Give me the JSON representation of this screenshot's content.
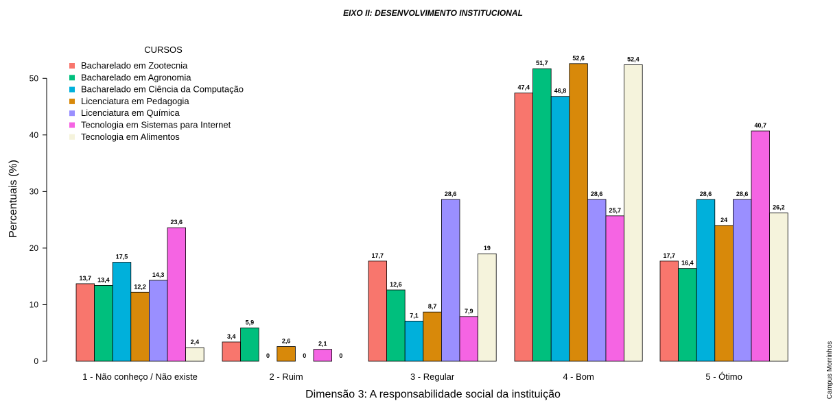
{
  "chart_data": {
    "type": "bar",
    "title": "EIXO II: DESENVOLVIMENTO INSTITUCIONAL",
    "xlabel": "Dimensão 3: A responsabilidade social da instituição",
    "ylabel": "Percentuais (%)",
    "ylim": [
      0,
      55
    ],
    "yticks": [
      0,
      10,
      20,
      30,
      40,
      50
    ],
    "categories": [
      "1 - Não conheço / Não existe",
      "2 - Ruim",
      "3 - Regular",
      "4 - Bom",
      "5 - Ótimo"
    ],
    "legend_title": "CURSOS",
    "legend_position": "top-left",
    "grid": false,
    "series": [
      {
        "name": "Bacharelado em Zootecnia",
        "color": "#F8766D",
        "values": [
          13.7,
          3.4,
          17.7,
          47.4,
          17.7
        ],
        "labels": [
          "13,7",
          "3,4",
          "17,7",
          "47,4",
          "17,7"
        ]
      },
      {
        "name": "Bacharelado em Agronomia",
        "color": "#00BF7D",
        "values": [
          13.4,
          5.9,
          12.6,
          51.7,
          16.4
        ],
        "labels": [
          "13,4",
          "5,9",
          "12,6",
          "51,7",
          "16,4"
        ]
      },
      {
        "name": "Bacharelado em Ciência da Computação",
        "color": "#00B0DB",
        "values": [
          17.5,
          0,
          7.1,
          46.8,
          28.6
        ],
        "labels": [
          "17,5",
          "0",
          "7,1",
          "46,8",
          "28,6"
        ]
      },
      {
        "name": "Licenciatura em Pedagogia",
        "color": "#D8890A",
        "values": [
          12.2,
          2.6,
          8.7,
          52.6,
          24
        ],
        "labels": [
          "12,2",
          "2,6",
          "8,7",
          "52,6",
          "24"
        ]
      },
      {
        "name": "Licenciatura em Química",
        "color": "#9A8FFF",
        "values": [
          14.3,
          0,
          28.6,
          28.6,
          28.6
        ],
        "labels": [
          "14,3",
          "0",
          "28,6",
          "28,6",
          "28,6"
        ]
      },
      {
        "name": "Tecnologia em Sistemas para Internet",
        "color": "#F564E3",
        "values": [
          23.6,
          2.1,
          7.9,
          25.7,
          40.7
        ],
        "labels": [
          "23,6",
          "2,1",
          "7,9",
          "25,7",
          "40,7"
        ]
      },
      {
        "name": "Tecnologia em Alimentos",
        "color": "#F5F3DC",
        "values": [
          2.4,
          0,
          19,
          52.4,
          26.2
        ],
        "labels": [
          "2,4",
          "0",
          "19",
          "52,4",
          "26,2"
        ]
      }
    ],
    "side_note": "Campus Morrinhos"
  }
}
